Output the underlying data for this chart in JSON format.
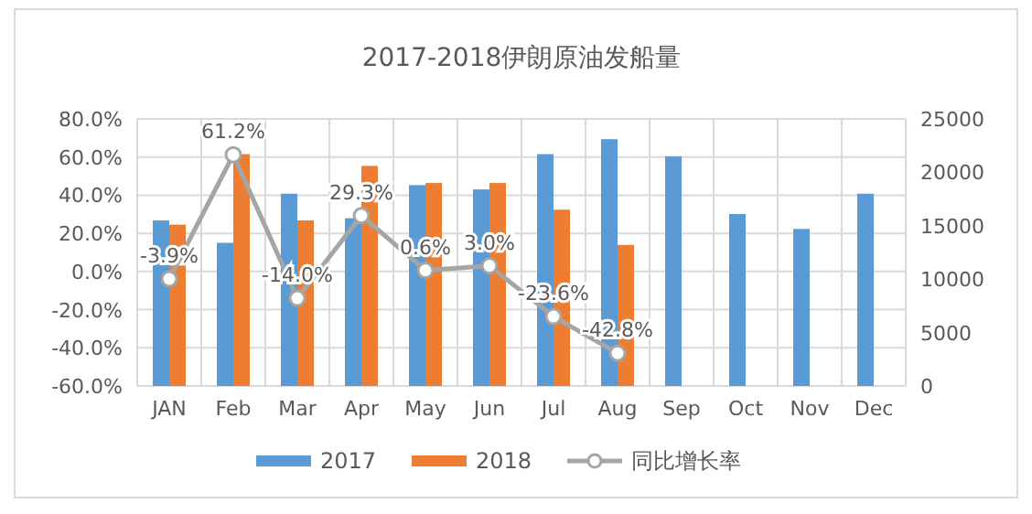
{
  "chart_data": {
    "type": "bar",
    "title": "2017-2018伊朗原油发船量",
    "categories": [
      "JAN",
      "Feb",
      "Mar",
      "Apr",
      "May",
      "Jun",
      "Jul",
      "Aug",
      "Sep",
      "Oct",
      "Nov",
      "Dec"
    ],
    "series": [
      {
        "name": "2017",
        "color": "#5b9bd5",
        "axis": "y2",
        "values": [
          15500,
          13400,
          18000,
          15700,
          18800,
          18400,
          21700,
          23100,
          21500,
          16100,
          14700,
          18000
        ]
      },
      {
        "name": "2018",
        "color": "#ed7d31",
        "axis": "y2",
        "values": [
          15100,
          21700,
          15500,
          20600,
          19000,
          19000,
          16500,
          13200,
          null,
          null,
          null,
          null
        ]
      },
      {
        "name": "同比增长率",
        "type": "line",
        "color": "#a5a5a5",
        "marker": "circle",
        "line_style": "solid",
        "values": [
          -3.9,
          61.2,
          -14.0,
          29.3,
          0.6,
          3.0,
          -23.6,
          -42.8,
          null,
          null,
          null,
          null
        ],
        "value_labels": [
          "-3.9%",
          "61.2%",
          "-14.0%",
          "29.3%",
          "0.6%",
          "3.0%",
          "-23.6%",
          "-42.8%",
          null,
          null,
          null,
          null
        ]
      }
    ],
    "ylim": [
      -60,
      80
    ],
    "yticks": [
      {
        "value": -60,
        "label": "-60.0%"
      },
      {
        "value": -40,
        "label": "-40.0%"
      },
      {
        "value": -20,
        "label": "-20.0%"
      },
      {
        "value": 0,
        "label": "0.0%"
      },
      {
        "value": 20,
        "label": "20.0%"
      },
      {
        "value": 40,
        "label": "40.0%"
      },
      {
        "value": 60,
        "label": "60.0%"
      },
      {
        "value": 80,
        "label": "80.0%"
      }
    ],
    "y2lim": [
      0,
      25000
    ],
    "y2ticks": [
      0,
      5000,
      10000,
      15000,
      20000,
      25000
    ],
    "grid": true,
    "legend": "bottom"
  }
}
